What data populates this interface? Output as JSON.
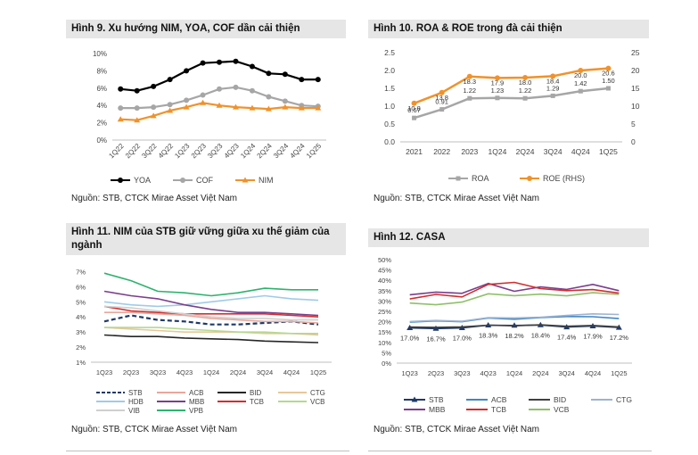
{
  "charts": [
    {
      "id": "fig9",
      "title": "Hình 9. Xu hướng NIM, YOA, COF dần cải thiện",
      "source": "Nguồn: STB, CTCK Mirae Asset Việt Nam"
    },
    {
      "id": "fig10",
      "title": "Hình 10. ROA & ROE trong đà cải thiện",
      "source": "Nguồn: STB, CTCK Mirae Asset Việt Nam"
    },
    {
      "id": "fig11",
      "title": "Hình 11. NIM của STB giữ vững giữa xu thế giảm của ngành",
      "source": "Nguồn: STB, CTCK Mirae Asset Việt Nam"
    },
    {
      "id": "fig12",
      "title": "Hình 12. CASA",
      "source": "Nguồn: STB, CTCK Mirae Asset Việt Nam"
    }
  ],
  "chart_data": [
    {
      "type": "line",
      "title": "Hình 9. Xu hướng NIM, YOA, COF dần cải thiện",
      "categories": [
        "1Q22",
        "2Q22",
        "3Q22",
        "4Q22",
        "1Q23",
        "2Q23",
        "3Q23",
        "4Q23",
        "1Q24",
        "2Q24",
        "3Q24",
        "4Q24",
        "1Q25"
      ],
      "y_ticks": [
        "0%",
        "2%",
        "4%",
        "6%",
        "8%",
        "10%"
      ],
      "ylim": [
        0,
        10
      ],
      "grid": false,
      "legend": "bottom",
      "series": [
        {
          "name": "YOA",
          "color": "#000000",
          "marker": "circle",
          "values": [
            5.9,
            5.7,
            6.2,
            7.0,
            8.0,
            8.9,
            9.0,
            9.1,
            8.5,
            7.7,
            7.6,
            7.0,
            7.0
          ]
        },
        {
          "name": "COF",
          "color": "#a6a6a6",
          "marker": "circle",
          "values": [
            3.7,
            3.7,
            3.8,
            4.1,
            4.6,
            5.2,
            5.9,
            6.1,
            5.7,
            5.0,
            4.5,
            4.0,
            3.9
          ]
        },
        {
          "name": "NIM",
          "color": "#f0922b",
          "marker": "triangle",
          "values": [
            2.4,
            2.3,
            2.8,
            3.4,
            3.8,
            4.3,
            4.0,
            3.8,
            3.7,
            3.6,
            3.8,
            3.7,
            3.7
          ]
        }
      ]
    },
    {
      "type": "line",
      "title": "Hình 10. ROA & ROE trong đà cải thiện",
      "categories": [
        "2021",
        "2022",
        "2023",
        "1Q24",
        "2Q24",
        "3Q24",
        "4Q24",
        "1Q25"
      ],
      "y_ticks": [
        "0.0",
        "0.5",
        "1.0",
        "1.5",
        "2.0",
        "2.5"
      ],
      "y2_ticks": [
        "0",
        "5",
        "10",
        "15",
        "20",
        "25"
      ],
      "ylim": [
        0,
        2.5
      ],
      "y2lim": [
        0,
        25
      ],
      "grid": false,
      "legend": "bottom",
      "series": [
        {
          "name": "ROA",
          "axis": "left",
          "color": "#a6a6a6",
          "marker": "square",
          "values": [
            0.67,
            0.91,
            1.22,
            1.23,
            1.22,
            1.29,
            1.42,
            1.5
          ],
          "labels": [
            "0.67",
            "0.91",
            "1.22",
            "1.23",
            "1.22",
            "1.29",
            "1.42",
            "1.50"
          ]
        },
        {
          "name": "ROE (RHS)",
          "axis": "right",
          "color": "#f0922b",
          "marker": "circle",
          "values": [
            10.8,
            13.8,
            18.3,
            17.9,
            18.0,
            18.4,
            20.0,
            20.6
          ],
          "labels": [
            "10.8",
            "13.8",
            "18.3",
            "17.9",
            "18.0",
            "18.4",
            "20.0",
            "20.6"
          ]
        }
      ]
    },
    {
      "type": "line",
      "title": "Hình 11. NIM của STB giữ vững giữa xu thế giảm của ngành",
      "categories": [
        "1Q23",
        "2Q23",
        "3Q23",
        "4Q23",
        "1Q24",
        "2Q24",
        "3Q24",
        "4Q24",
        "1Q25"
      ],
      "y_ticks": [
        "1%",
        "2%",
        "3%",
        "4%",
        "5%",
        "6%",
        "7%"
      ],
      "ylim": [
        1,
        7.5
      ],
      "grid": false,
      "legend": "bottom",
      "series": [
        {
          "name": "STB",
          "color": "#1f3a68",
          "dash": true,
          "values": [
            3.7,
            4.1,
            3.8,
            3.7,
            3.5,
            3.5,
            3.6,
            3.7,
            3.5
          ]
        },
        {
          "name": "ACB",
          "color": "#e8a79c",
          "values": [
            4.3,
            4.3,
            4.2,
            4.1,
            3.9,
            3.8,
            3.7,
            3.7,
            3.6
          ]
        },
        {
          "name": "BID",
          "color": "#262626",
          "values": [
            2.8,
            2.7,
            2.7,
            2.6,
            2.55,
            2.5,
            2.4,
            2.35,
            2.3
          ]
        },
        {
          "name": "CTG",
          "color": "#e8c79a",
          "values": [
            3.3,
            3.2,
            3.1,
            3.0,
            3.0,
            3.0,
            2.9,
            2.9,
            2.8
          ]
        },
        {
          "name": "HDB",
          "color": "#9fcbe8",
          "values": [
            5.0,
            4.8,
            4.7,
            4.8,
            5.0,
            5.2,
            5.4,
            5.2,
            5.1
          ]
        },
        {
          "name": "MBB",
          "color": "#7b3f8c",
          "values": [
            5.7,
            5.4,
            5.2,
            4.8,
            4.5,
            4.3,
            4.3,
            4.2,
            4.1
          ]
        },
        {
          "name": "TCB",
          "color": "#d12e2e",
          "values": [
            4.7,
            4.4,
            4.3,
            4.2,
            4.2,
            4.2,
            4.2,
            4.1,
            4.0
          ]
        },
        {
          "name": "VCB",
          "color": "#b3d98f",
          "values": [
            3.3,
            3.3,
            3.3,
            3.2,
            3.1,
            3.0,
            3.0,
            2.9,
            2.9
          ]
        },
        {
          "name": "VIB",
          "color": "#cfcfcf",
          "values": [
            4.7,
            4.6,
            4.4,
            4.2,
            4.0,
            3.9,
            3.9,
            3.8,
            3.8
          ]
        },
        {
          "name": "VPB",
          "color": "#2db36e",
          "values": [
            6.9,
            6.4,
            5.7,
            5.6,
            5.4,
            5.6,
            5.9,
            5.8,
            5.8
          ]
        }
      ]
    },
    {
      "type": "line",
      "title": "Hình 12. CASA",
      "categories": [
        "1Q23",
        "2Q23",
        "3Q23",
        "4Q23",
        "1Q24",
        "2Q24",
        "3Q24",
        "4Q24",
        "1Q25"
      ],
      "y_ticks": [
        "0%",
        "5%",
        "10%",
        "15%",
        "20%",
        "25%",
        "30%",
        "35%",
        "40%",
        "45%",
        "50%"
      ],
      "ylim": [
        0,
        50
      ],
      "grid": false,
      "legend": "bottom",
      "series": [
        {
          "name": "STB",
          "color": "#1f3a68",
          "marker": "triangle",
          "values": [
            17.0,
            16.7,
            17.0,
            18.3,
            18.2,
            18.4,
            17.4,
            17.9,
            17.2
          ],
          "labels": [
            "17.0%",
            "16.7%",
            "17.0%",
            "18.3%",
            "18.2%",
            "18.4%",
            "17.4%",
            "17.9%",
            "17.2%"
          ]
        },
        {
          "name": "ACB",
          "color": "#3f87c4",
          "values": [
            19.8,
            20.4,
            20.0,
            21.8,
            21.2,
            22.0,
            22.5,
            22.4,
            21.5
          ]
        },
        {
          "name": "BID",
          "color": "#404040",
          "values": [
            17.4,
            17.3,
            17.5,
            18.3,
            18.0,
            18.5,
            17.8,
            18.2,
            17.5
          ]
        },
        {
          "name": "CTG",
          "color": "#9fb3d1",
          "values": [
            20.1,
            20.6,
            20.2,
            22.0,
            21.8,
            22.2,
            23.0,
            23.8,
            23.5
          ]
        },
        {
          "name": "MBB",
          "color": "#7b3f8c",
          "values": [
            33.0,
            34.3,
            33.7,
            38.5,
            34.7,
            36.8,
            35.6,
            38.0,
            35.0
          ]
        },
        {
          "name": "TCB",
          "color": "#d12e2e",
          "values": [
            31.0,
            33.2,
            32.0,
            38.0,
            39.0,
            36.0,
            35.0,
            35.5,
            33.8
          ]
        },
        {
          "name": "VCB",
          "color": "#8fc06a",
          "values": [
            29.0,
            28.2,
            29.5,
            33.5,
            32.6,
            33.3,
            32.5,
            34.0,
            33.2
          ]
        }
      ]
    }
  ]
}
